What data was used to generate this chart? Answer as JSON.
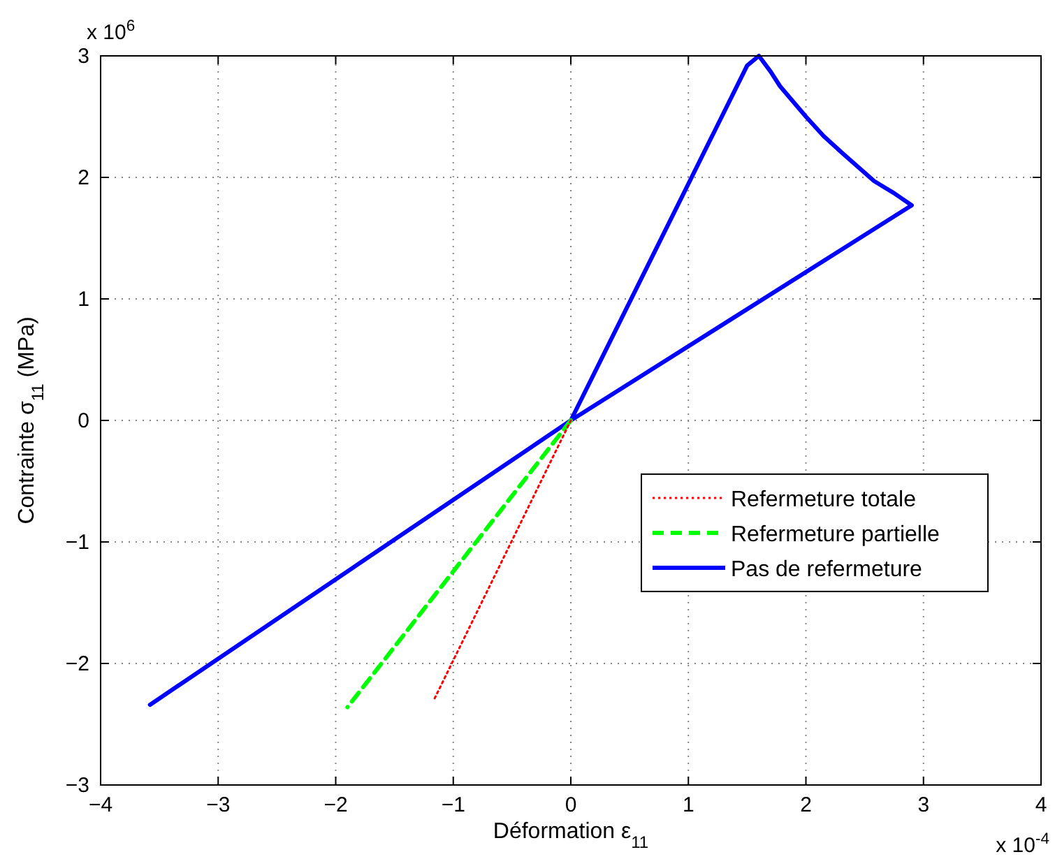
{
  "chart_data": {
    "type": "line",
    "xlabel": "Déformation ε$_{11}$",
    "ylabel": "Contrainte σ$_{11}$ (MPa)",
    "annotations": [
      "x 10$^{6}$",
      "x 10$^{-4}$"
    ],
    "xlim": [
      -4,
      4
    ],
    "xticks": [
      -4,
      -3,
      -2,
      -1,
      0,
      1,
      2,
      3,
      4
    ],
    "ylim": [
      -3,
      3
    ],
    "yticks": [
      -3,
      -2,
      -1,
      0,
      1,
      2,
      3
    ],
    "grid": true,
    "legend": "bottom right",
    "series": [
      {
        "name": "Refermeture totale",
        "color": "#ff0000",
        "line_style": "dotted",
        "x": [
          0,
          -1.17
        ],
        "values": [
          0,
          -2.31
        ]
      },
      {
        "name": "Refermeture partielle",
        "color": "#00ff00",
        "line_style": "dashed",
        "x": [
          0,
          -1.9
        ],
        "values": [
          0,
          -2.36
        ]
      },
      {
        "name": "Pas de refermeture",
        "color": "#0000ff",
        "line_style": "solid",
        "x": [
          0,
          1.5,
          1.6,
          1.7,
          1.78,
          2.0,
          2.15,
          2.31,
          2.45,
          2.58,
          2.75,
          2.9,
          0,
          -3.58
        ],
        "values": [
          0,
          2.92,
          3.0,
          2.87,
          2.75,
          2.5,
          2.34,
          2.2,
          2.08,
          1.97,
          1.87,
          1.77,
          0,
          -2.34
        ]
      }
    ]
  }
}
